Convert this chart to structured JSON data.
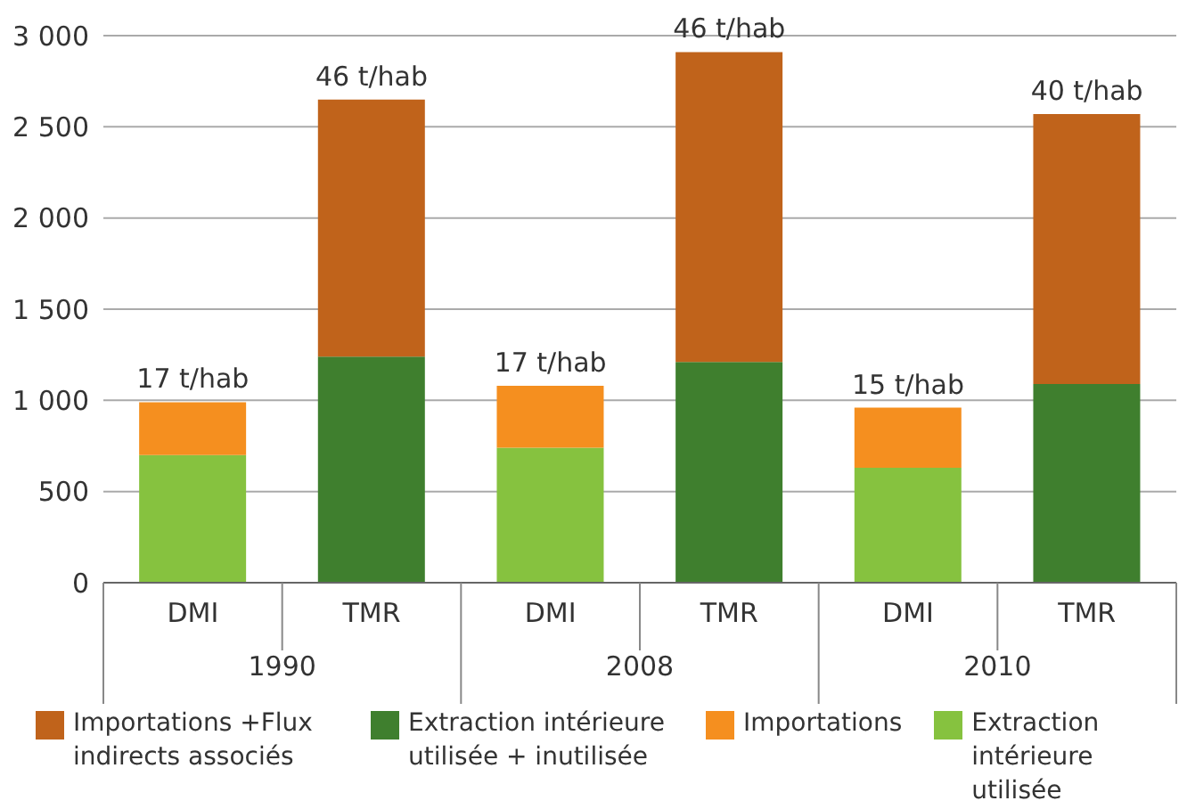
{
  "chart_data": {
    "type": "bar",
    "stacked": true,
    "categories": [
      "DMI",
      "TMR",
      "DMI",
      "TMR",
      "DMI",
      "TMR"
    ],
    "annotations": [
      "17 t/hab",
      "46 t/hab",
      "17 t/hab",
      "46 t/hab",
      "15 t/hab",
      "40 t/hab",
      "1990",
      "2008",
      "2010"
    ],
    "series": [
      {
        "name": "Extraction intérieure utilisée",
        "color": "#86c23f",
        "values": [
          700,
          null,
          740,
          null,
          630,
          null
        ]
      },
      {
        "name": "Importations",
        "color": "#f58f1f",
        "values": [
          290,
          null,
          340,
          null,
          330,
          null
        ]
      },
      {
        "name": "Extraction intérieure utilisée + inutilisée",
        "color": "#3f7f2e",
        "values": [
          null,
          1240,
          null,
          1210,
          null,
          1090
        ]
      },
      {
        "name": "Importations +Flux indirects associés",
        "color": "#c0631b",
        "values": [
          null,
          1410,
          null,
          1700,
          null,
          1480
        ]
      }
    ],
    "ylim": [
      0,
      3000
    ],
    "yticks": [
      0,
      500,
      {
        "value": 1000,
        "label": "1 000"
      },
      {
        "value": 1500,
        "label": "1 500"
      },
      {
        "value": 2000,
        "label": "2 000"
      },
      {
        "value": 2500,
        "label": "2 500"
      },
      {
        "value": 3000,
        "label": "3 000"
      }
    ],
    "grid": "y",
    "legend": "bottom"
  }
}
